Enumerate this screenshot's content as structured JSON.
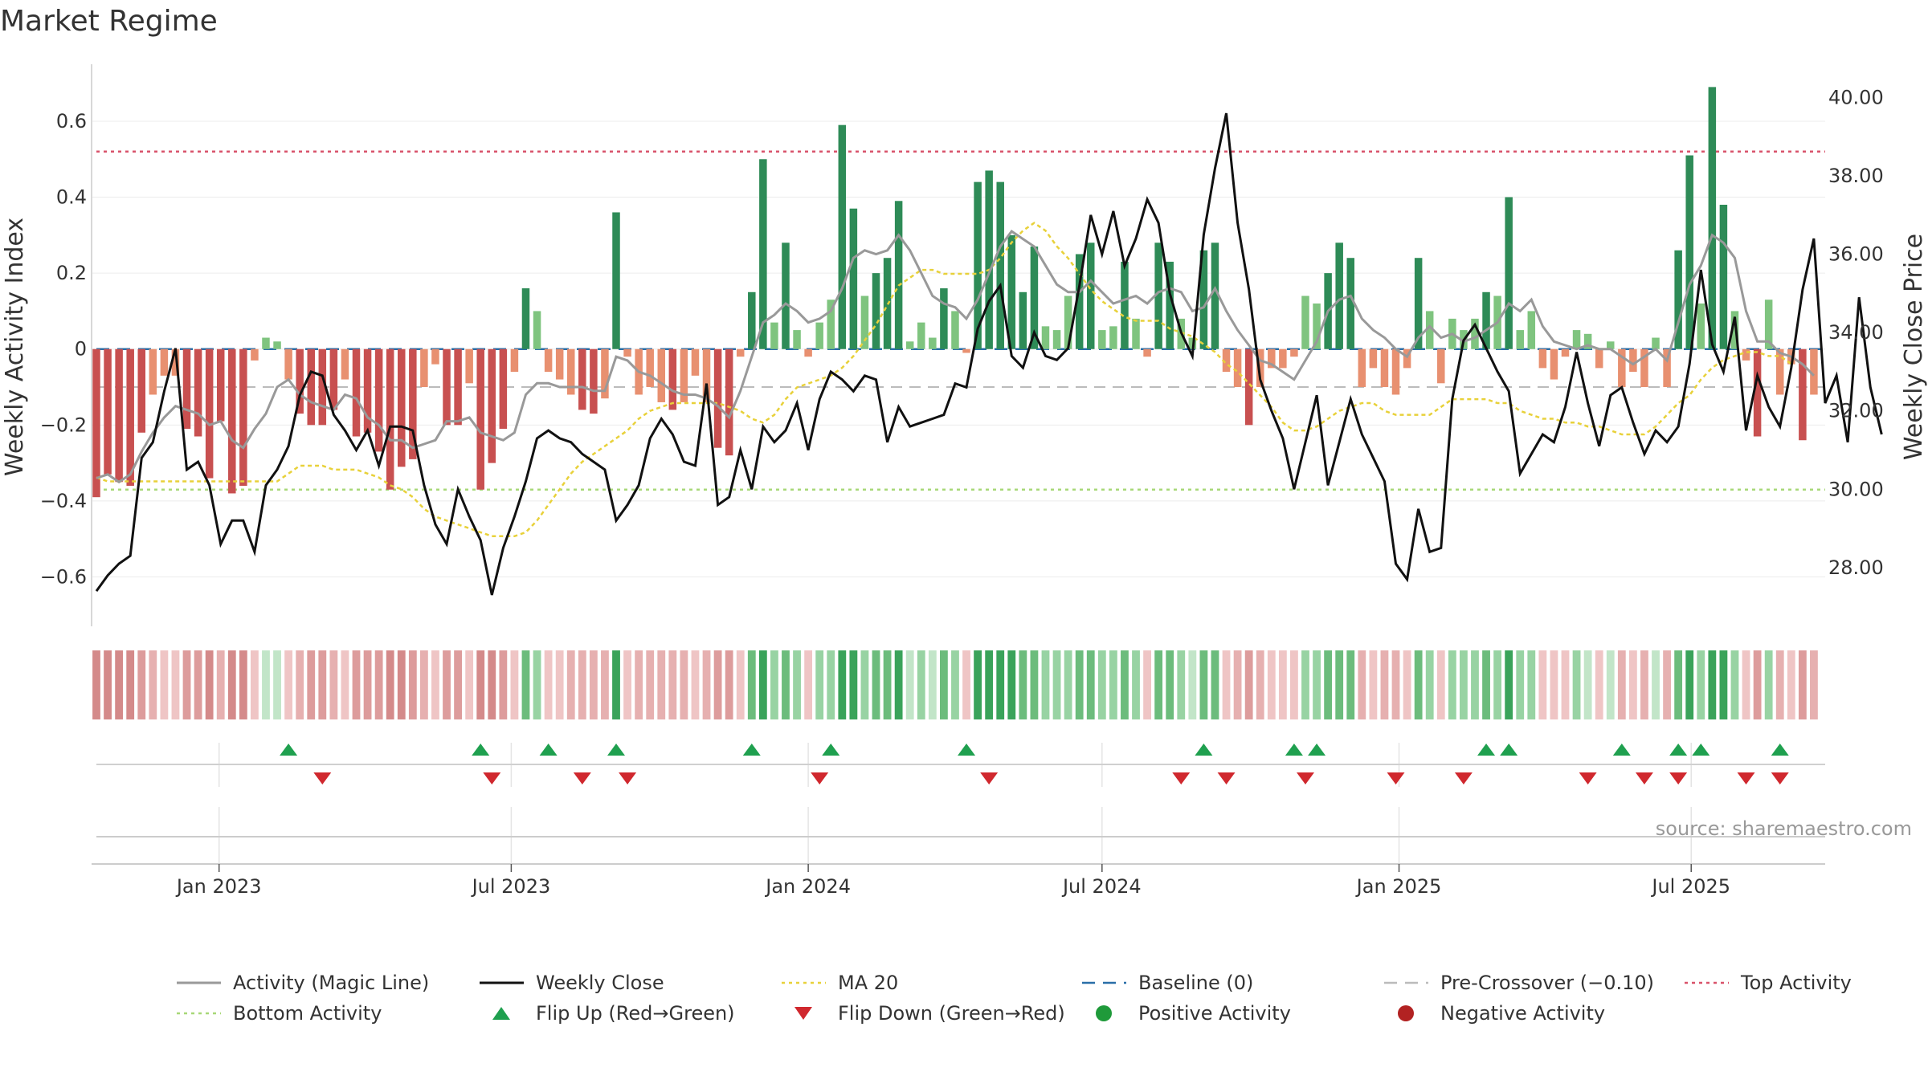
{
  "title": "Market Regime",
  "source": "source: sharemaestro.com",
  "colors": {
    "strong_up": "#2e8b57",
    "weak_up": "#7fc47f",
    "strong_down": "#c85050",
    "weak_down": "#e89070",
    "close": "#111111",
    "magic": "#999999",
    "ma20": "#e8d13a",
    "baseline": "#2a6fa8",
    "pre_cross": "#bbbbbb",
    "top": "#d9536b",
    "bottom": "#a8d878",
    "flip_up": "#1fa04f",
    "flip_down": "#d0282e",
    "pos_activity": "#1f9a3a",
    "neg_activity": "#b22222"
  },
  "chart_data": {
    "type": "bar",
    "title": "Market Regime",
    "left_axis": {
      "label": "Weekly Activity Index",
      "range": [
        -0.73,
        0.75
      ],
      "ticks": [
        -0.6,
        -0.4,
        -0.2,
        0,
        0.2,
        0.4,
        0.6
      ],
      "tick_labels": [
        "−0.6",
        "−0.4",
        "−0.2",
        "0",
        "0.2",
        "0.4",
        "0.6"
      ]
    },
    "right_axis": {
      "label": "Weekly Close Price",
      "range": [
        26.5,
        40.85
      ],
      "ticks": [
        28,
        30,
        32,
        34,
        36,
        38,
        40
      ],
      "tick_labels": [
        "28.00",
        "30.00",
        "32.00",
        "34.00",
        "36.00",
        "38.00",
        "40.00"
      ]
    },
    "x_axis": {
      "start": "2022-10-17",
      "end": "2025-09-22",
      "ticks": [
        "2023-01-01",
        "2023-07-01",
        "2024-01-01",
        "2024-07-01",
        "2025-01-01",
        "2025-07-01"
      ],
      "tick_labels": [
        "Jan 2023",
        "Jul 2023",
        "Jan 2024",
        "Jul 2024",
        "Jan 2025",
        "Jul 2025"
      ]
    },
    "reference_lines": {
      "top": 0.52,
      "bottom": -0.37,
      "pre_crossover": -0.1,
      "baseline": 0
    },
    "activity": [
      -0.39,
      -0.33,
      -0.35,
      -0.36,
      -0.22,
      -0.12,
      -0.07,
      -0.07,
      -0.21,
      -0.23,
      -0.34,
      -0.19,
      -0.38,
      -0.36,
      -0.03,
      0.03,
      0.02,
      -0.08,
      -0.17,
      -0.2,
      -0.2,
      -0.16,
      -0.08,
      -0.23,
      -0.22,
      -0.27,
      -0.37,
      -0.31,
      -0.29,
      -0.1,
      -0.04,
      -0.2,
      -0.2,
      -0.09,
      -0.37,
      -0.3,
      -0.21,
      -0.06,
      0.16,
      0.1,
      -0.06,
      -0.08,
      -0.12,
      -0.16,
      -0.17,
      -0.13,
      0.36,
      -0.02,
      -0.12,
      -0.1,
      -0.14,
      -0.16,
      -0.14,
      -0.07,
      -0.14,
      -0.26,
      -0.28,
      -0.02,
      0.15,
      0.5,
      0.07,
      0.28,
      0.05,
      -0.02,
      0.07,
      0.13,
      0.59,
      0.37,
      0.14,
      0.2,
      0.24,
      0.39,
      0.02,
      0.07,
      0.03,
      0.16,
      0.1,
      -0.01,
      0.44,
      0.47,
      0.44,
      0.3,
      0.15,
      0.27,
      0.06,
      0.05,
      0.14,
      0.25,
      0.28,
      0.05,
      0.06,
      0.23,
      0.08,
      -0.02,
      0.28,
      0.23,
      0.08,
      0.03,
      0.26,
      0.28,
      -0.06,
      -0.1,
      -0.2,
      -0.1,
      -0.05,
      -0.05,
      -0.02,
      0.14,
      0.12,
      0.2,
      0.28,
      0.24,
      -0.1,
      -0.05,
      -0.1,
      -0.12,
      -0.05,
      0.24,
      0.1,
      -0.09,
      0.08,
      0.05,
      0.08,
      0.15,
      0.14,
      0.4,
      0.05,
      0.1,
      -0.05,
      -0.08,
      -0.02,
      0.05,
      0.04,
      -0.05,
      0.02,
      -0.1,
      -0.06,
      -0.1,
      0.03,
      -0.1,
      0.26,
      0.51,
      0.12,
      0.69,
      0.38,
      0.1,
      -0.03,
      -0.23,
      0.13,
      -0.12,
      -0.04,
      -0.24,
      -0.12
    ],
    "close": [
      27.4,
      27.8,
      28.1,
      28.3,
      30.8,
      31.2,
      32.5,
      33.6,
      30.5,
      30.7,
      30.1,
      28.6,
      29.2,
      29.2,
      28.4,
      30.1,
      30.5,
      31.1,
      32.4,
      33.0,
      32.9,
      31.9,
      31.5,
      31.0,
      31.5,
      30.6,
      31.6,
      31.6,
      31.5,
      30.1,
      29.1,
      28.6,
      30.0,
      29.3,
      28.7,
      27.3,
      28.5,
      29.3,
      30.2,
      31.3,
      31.5,
      31.3,
      31.2,
      30.9,
      30.7,
      30.5,
      29.2,
      29.6,
      30.1,
      31.3,
      31.8,
      31.4,
      30.7,
      30.6,
      32.7,
      29.6,
      29.8,
      31.0,
      30.0,
      31.6,
      31.2,
      31.5,
      32.2,
      31.0,
      32.3,
      33.0,
      32.8,
      32.5,
      32.9,
      32.8,
      31.2,
      32.1,
      31.6,
      31.7,
      31.8,
      31.9,
      32.7,
      32.6,
      34.1,
      34.8,
      35.2,
      33.4,
      33.1,
      34.0,
      33.4,
      33.3,
      33.6,
      35.2,
      37.0,
      36.0,
      37.1,
      35.7,
      36.4,
      37.4,
      36.8,
      35.0,
      34.0,
      33.4,
      36.5,
      38.2,
      39.6,
      36.8,
      35.1,
      32.8,
      32.0,
      31.3,
      30.0,
      31.2,
      32.4,
      30.1,
      31.2,
      32.3,
      31.4,
      30.8,
      30.2,
      28.1,
      27.7,
      29.5,
      28.4,
      28.5,
      32.3,
      33.8,
      34.2,
      33.6,
      33.0,
      32.5,
      30.4,
      30.9,
      31.4,
      31.2,
      32.1,
      33.5,
      32.2,
      31.1,
      32.4,
      32.6,
      31.7,
      30.9,
      31.5,
      31.2,
      31.6,
      33.2,
      35.6,
      33.7,
      33.0,
      34.4,
      31.5,
      32.9,
      32.1,
      31.6,
      33.1,
      35.1,
      36.4,
      32.2,
      32.9,
      31.2,
      34.9,
      32.6,
      31.4
    ],
    "magic": [
      -0.34,
      -0.33,
      -0.35,
      -0.33,
      -0.27,
      -0.22,
      -0.18,
      -0.15,
      -0.16,
      -0.17,
      -0.2,
      -0.19,
      -0.24,
      -0.26,
      -0.21,
      -0.17,
      -0.1,
      -0.08,
      -0.12,
      -0.14,
      -0.15,
      -0.16,
      -0.12,
      -0.13,
      -0.18,
      -0.2,
      -0.24,
      -0.24,
      -0.26,
      -0.25,
      -0.24,
      -0.19,
      -0.19,
      -0.18,
      -0.22,
      -0.23,
      -0.24,
      -0.22,
      -0.12,
      -0.09,
      -0.09,
      -0.1,
      -0.1,
      -0.1,
      -0.11,
      -0.11,
      -0.02,
      -0.03,
      -0.06,
      -0.07,
      -0.09,
      -0.11,
      -0.12,
      -0.12,
      -0.13,
      -0.15,
      -0.18,
      -0.11,
      -0.02,
      0.07,
      0.09,
      0.12,
      0.1,
      0.07,
      0.08,
      0.1,
      0.16,
      0.24,
      0.26,
      0.25,
      0.26,
      0.3,
      0.26,
      0.2,
      0.14,
      0.12,
      0.11,
      0.08,
      0.13,
      0.2,
      0.27,
      0.31,
      0.29,
      0.27,
      0.22,
      0.17,
      0.15,
      0.15,
      0.18,
      0.15,
      0.12,
      0.13,
      0.14,
      0.12,
      0.15,
      0.16,
      0.15,
      0.1,
      0.11,
      0.16,
      0.1,
      0.05,
      0.01,
      -0.03,
      -0.04,
      -0.06,
      -0.08,
      -0.03,
      0.02,
      0.1,
      0.13,
      0.14,
      0.08,
      0.05,
      0.03,
      0.0,
      -0.02,
      0.03,
      0.06,
      0.03,
      0.04,
      0.02,
      0.03,
      0.05,
      0.07,
      0.12,
      0.1,
      0.13,
      0.06,
      0.02,
      0.01,
      0.0,
      0.01,
      0.0,
      0.0,
      -0.02,
      -0.04,
      -0.02,
      0.0,
      -0.03,
      0.07,
      0.17,
      0.22,
      0.3,
      0.28,
      0.24,
      0.1,
      0.02,
      0.02,
      -0.01,
      -0.02,
      -0.04,
      -0.07
    ],
    "ma20": [
      30.3,
      30.2,
      30.2,
      30.2,
      30.2,
      30.2,
      30.2,
      30.2,
      30.2,
      30.2,
      30.2,
      30.2,
      30.2,
      30.2,
      30.2,
      30.2,
      30.2,
      30.4,
      30.6,
      30.6,
      30.6,
      30.5,
      30.5,
      30.5,
      30.4,
      30.3,
      30.1,
      30.0,
      29.8,
      29.5,
      29.3,
      29.2,
      29.1,
      29.0,
      28.9,
      28.8,
      28.8,
      28.8,
      28.9,
      29.2,
      29.6,
      30.0,
      30.4,
      30.7,
      30.9,
      31.1,
      31.3,
      31.5,
      31.8,
      32.0,
      32.1,
      32.2,
      32.2,
      32.2,
      32.2,
      32.2,
      32.1,
      32.0,
      31.8,
      31.7,
      31.9,
      32.3,
      32.6,
      32.7,
      32.8,
      32.9,
      33.1,
      33.4,
      33.8,
      34.2,
      34.7,
      35.2,
      35.4,
      35.6,
      35.6,
      35.5,
      35.5,
      35.5,
      35.5,
      35.6,
      35.9,
      36.3,
      36.6,
      36.8,
      36.6,
      36.2,
      35.9,
      35.5,
      35.1,
      34.8,
      34.6,
      34.4,
      34.3,
      34.3,
      34.3,
      34.1,
      34.0,
      33.9,
      33.7,
      33.5,
      33.2,
      33.0,
      32.7,
      32.4,
      32.1,
      31.7,
      31.5,
      31.5,
      31.6,
      31.8,
      32.0,
      32.1,
      32.2,
      32.2,
      32.0,
      31.9,
      31.9,
      31.9,
      31.9,
      32.1,
      32.3,
      32.3,
      32.3,
      32.3,
      32.2,
      32.2,
      32.0,
      31.9,
      31.8,
      31.8,
      31.7,
      31.7,
      31.6,
      31.6,
      31.5,
      31.4,
      31.4,
      31.4,
      31.6,
      31.9,
      32.2,
      32.4,
      32.8,
      33.1,
      33.3,
      33.4,
      33.5,
      33.5,
      33.4,
      33.4,
      33.2
    ],
    "flip_up_dates": [
      "2023-02-13",
      "2023-06-12",
      "2023-07-24",
      "2023-09-04",
      "2023-11-27",
      "2024-01-15",
      "2024-04-08",
      "2024-09-02",
      "2024-10-28",
      "2024-11-11",
      "2025-02-24",
      "2025-03-10",
      "2025-05-19",
      "2025-06-23",
      "2025-07-07",
      "2025-08-25"
    ],
    "flip_down_dates": [
      "2023-03-06",
      "2023-06-19",
      "2023-08-14",
      "2023-09-11",
      "2024-01-08",
      "2024-04-22",
      "2024-08-19",
      "2024-09-16",
      "2024-11-04",
      "2024-12-30",
      "2025-02-10",
      "2025-04-28",
      "2025-06-02",
      "2025-06-23",
      "2025-08-04",
      "2025-08-25"
    ]
  },
  "legend": [
    {
      "key": "magic",
      "label": "Activity (Magic Line)",
      "style": "line"
    },
    {
      "key": "close",
      "label": "Weekly Close",
      "style": "line"
    },
    {
      "key": "ma20",
      "label": "MA 20",
      "style": "dotted"
    },
    {
      "key": "baseline",
      "label": "Baseline (0)",
      "style": "dashed"
    },
    {
      "key": "pre_cross",
      "label": "Pre-Crossover (−0.10)",
      "style": "dashed"
    },
    {
      "key": "top",
      "label": "Top Activity",
      "style": "dotted"
    },
    {
      "key": "bottom",
      "label": "Bottom Activity",
      "style": "dotted"
    },
    {
      "key": "flip_up",
      "label": "Flip Up (Red→Green)",
      "style": "tri-up"
    },
    {
      "key": "flip_down",
      "label": "Flip Down (Green→Red)",
      "style": "tri-down"
    },
    {
      "key": "pos_activity",
      "label": "Positive Activity",
      "style": "dot"
    },
    {
      "key": "neg_activity",
      "label": "Negative Activity",
      "style": "dot"
    }
  ]
}
